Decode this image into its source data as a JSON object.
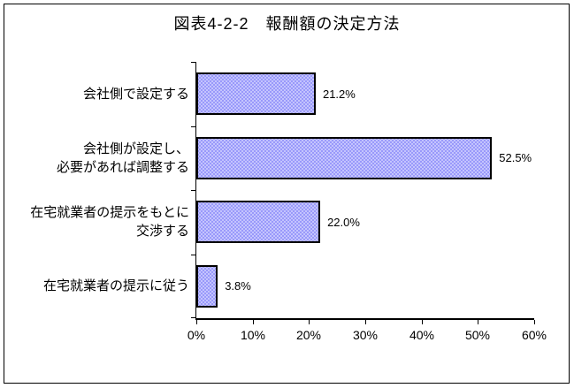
{
  "chart_data": {
    "type": "bar",
    "orientation": "horizontal",
    "title": "図表4-2-2　報酬額の決定方法",
    "categories": [
      "会社側で設定する",
      "会社側が設定し、\n必要があれば調整する",
      "在宅就業者の提示をもとに\n交渉する",
      "在宅就業者の提示に従う"
    ],
    "values": [
      21.2,
      52.5,
      22.0,
      3.8
    ],
    "value_labels": [
      "21.2%",
      "52.5%",
      "22.0%",
      "3.8%"
    ],
    "xlabel": "",
    "ylabel": "",
    "xlim": [
      0,
      60
    ],
    "x_tick_labels": [
      "0%",
      "10%",
      "20%",
      "30%",
      "40%",
      "50%",
      "60%"
    ],
    "grid": false,
    "legend": "none",
    "colors": {
      "bar_fill": "#9999fa",
      "bar_dot": "#c8c8ff",
      "bar_border": "#000000",
      "axis": "#000000",
      "background": "#ffffff",
      "frame_border": "#000000"
    }
  }
}
